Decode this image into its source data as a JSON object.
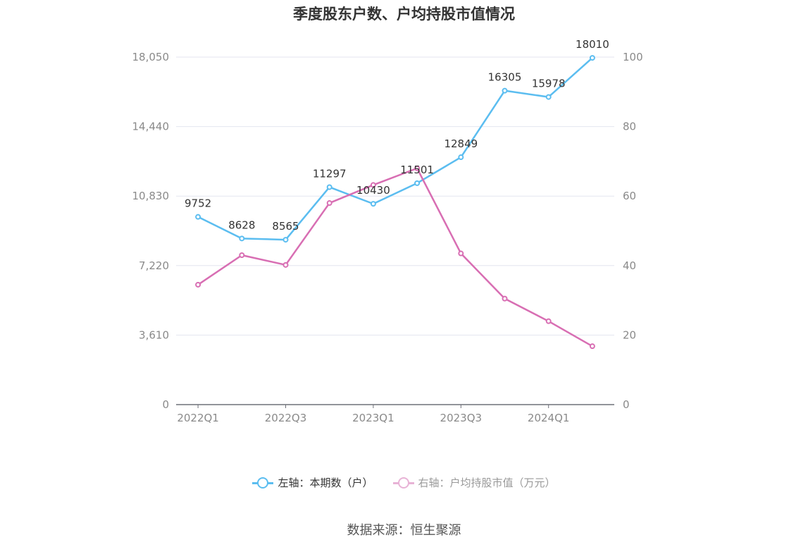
{
  "title": "季度股东户数、户均持股市值情况",
  "source": "数据来源：恒生聚源",
  "colors": {
    "series1": "#5bbdf0",
    "series2": "#d86eb3",
    "grid": "#e3e6ef",
    "axis": "#6e7079"
  },
  "legend": [
    {
      "label": "左轴：本期数（户）"
    },
    {
      "label": "右轴：户均持股市值（万元）"
    }
  ],
  "chart_data": {
    "type": "line",
    "categories": [
      "2022Q1",
      "2022Q2",
      "2022Q3",
      "2022Q4",
      "2023Q1",
      "2023Q2",
      "2023Q3",
      "2023Q4",
      "2024Q1",
      "2024Q2"
    ],
    "x_tick_labels": [
      "2022Q1",
      "2022Q3",
      "2023Q1",
      "2023Q3",
      "2024Q1"
    ],
    "left_axis": {
      "min": 0,
      "max": 18050,
      "ticks": [
        "0",
        "3,610",
        "7,220",
        "10,830",
        "14,440",
        "18,050"
      ]
    },
    "right_axis": {
      "min": 0,
      "max": 100,
      "ticks": [
        "0",
        "20",
        "40",
        "60",
        "80",
        "100"
      ]
    },
    "grid": true,
    "legend_position": "bottom-center",
    "series": [
      {
        "name": "左轴：本期数（户）",
        "axis": "left",
        "values": [
          9752,
          8628,
          8565,
          11297,
          10430,
          11501,
          12849,
          16305,
          15978,
          18010
        ],
        "labels": [
          "9752",
          "8628",
          "8565",
          "11297",
          "10430",
          "11501",
          "12849",
          "16305",
          "15978",
          "18010"
        ]
      },
      {
        "name": "右轴：户均持股市值（万元）",
        "axis": "right",
        "values": [
          34.5,
          43.0,
          40.2,
          58.0,
          63.2,
          68.0,
          43.5,
          30.5,
          24.0,
          16.8
        ]
      }
    ]
  }
}
